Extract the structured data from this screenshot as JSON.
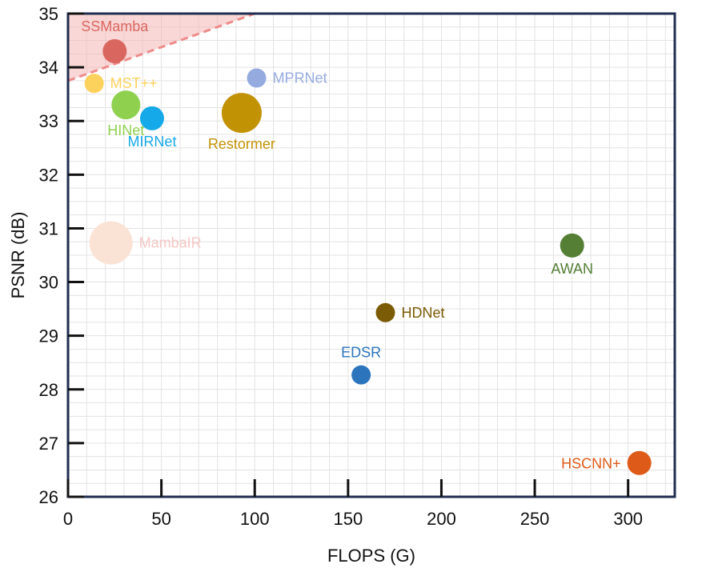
{
  "chart_data": {
    "type": "scatter",
    "xlabel": "FLOPS (G)",
    "ylabel": "PSNR (dB)",
    "xlim": [
      0,
      325
    ],
    "ylim": [
      26,
      35
    ],
    "x_ticks": [
      0,
      50,
      100,
      150,
      200,
      250,
      300
    ],
    "y_ticks": [
      26,
      27,
      28,
      29,
      30,
      31,
      32,
      33,
      34,
      35
    ],
    "grid": true,
    "highlight_region": {
      "description": "shaded triangle above dashed line",
      "line": [
        [
          0,
          33.75
        ],
        [
          100,
          35
        ]
      ],
      "color": "#f4b6b6"
    },
    "points": [
      {
        "name": "SSMamba",
        "x": 25,
        "y": 34.3,
        "color": "#d9675f",
        "label_color": "#d9675f",
        "size": 15,
        "label_pos": "above"
      },
      {
        "name": "MST++",
        "x": 14,
        "y": 33.7,
        "color": "#fdd25c",
        "label_color": "#fdd25c",
        "size": 12,
        "label_pos": "right"
      },
      {
        "name": "HINet",
        "x": 31,
        "y": 33.3,
        "color": "#8fd14f",
        "label_color": "#8fd14f",
        "size": 18,
        "label_pos": "below"
      },
      {
        "name": "MIRNet",
        "x": 45,
        "y": 33.05,
        "color": "#16a9e9",
        "label_color": "#16a9e9",
        "size": 15,
        "label_pos": "below"
      },
      {
        "name": "MPRNet",
        "x": 101,
        "y": 33.8,
        "color": "#95abe0",
        "label_color": "#95abe0",
        "size": 12,
        "label_pos": "right"
      },
      {
        "name": "Restormer",
        "x": 93,
        "y": 33.15,
        "color": "#c29205",
        "label_color": "#c29205",
        "size": 25,
        "label_pos": "below"
      },
      {
        "name": "MambaIR",
        "x": 23,
        "y": 30.73,
        "color": "#fae3d5",
        "label_color": "#f5c7c4",
        "size": 27,
        "label_pos": "right"
      },
      {
        "name": "AWAN",
        "x": 270,
        "y": 30.68,
        "color": "#547f34",
        "label_color": "#547f34",
        "size": 15,
        "label_pos": "below"
      },
      {
        "name": "HDNet",
        "x": 170,
        "y": 29.43,
        "color": "#7b5b05",
        "label_color": "#7b5b05",
        "size": 12,
        "label_pos": "right"
      },
      {
        "name": "EDSR",
        "x": 157,
        "y": 28.27,
        "color": "#2c75bd",
        "label_color": "#2c75bd",
        "size": 12,
        "label_pos": "above"
      },
      {
        "name": "HSCNN+",
        "x": 306,
        "y": 26.63,
        "color": "#de5a18",
        "label_color": "#de5a18",
        "size": 15,
        "label_pos": "left"
      }
    ]
  }
}
